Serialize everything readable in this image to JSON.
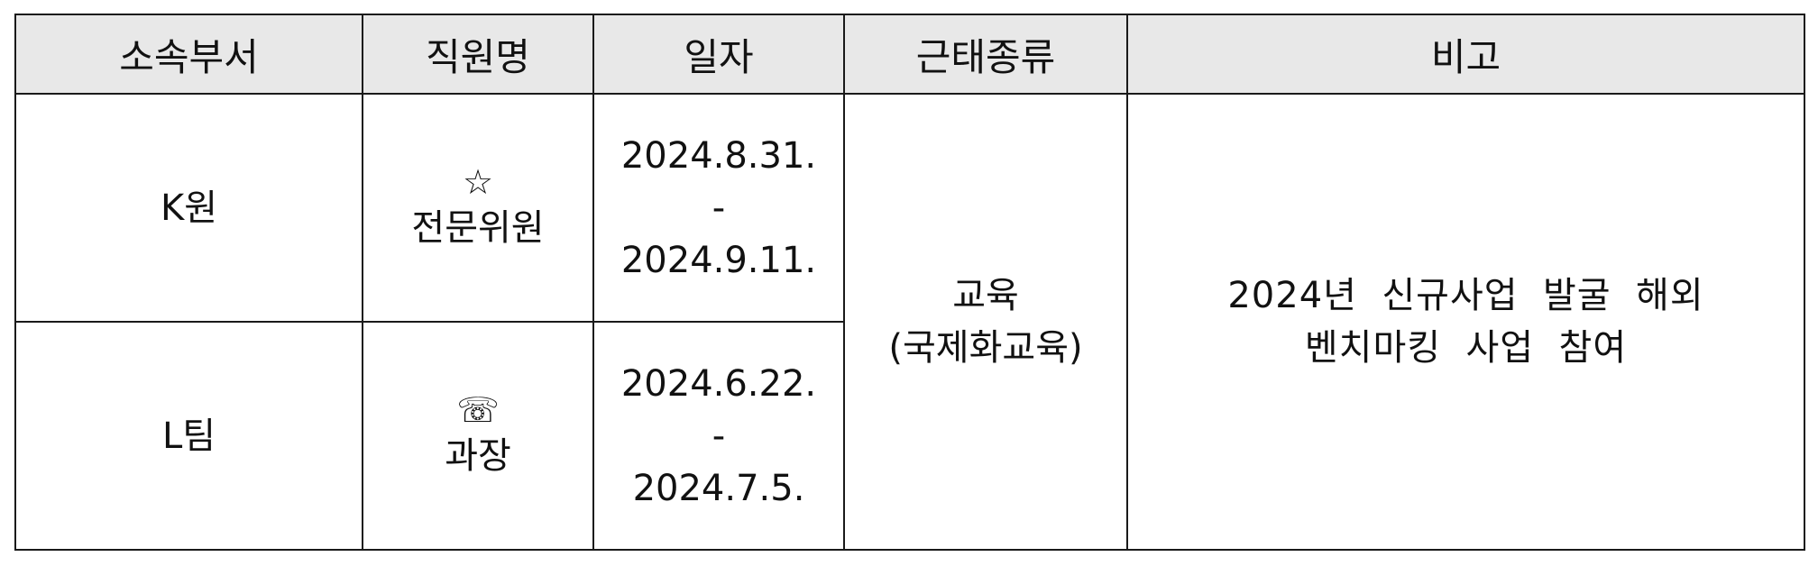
{
  "headers": {
    "dept": "소속부서",
    "name": "직원명",
    "date": "일자",
    "type": "근태종류",
    "note": "비고"
  },
  "rows": [
    {
      "dept": "K원",
      "icon": "☆",
      "icon_name": "star-icon",
      "position": "전문위원",
      "date_start": "2024.8.31.",
      "date_sep": "-",
      "date_end": "2024.9.11."
    },
    {
      "dept": "L팀",
      "icon": "☏",
      "icon_name": "telephone-icon",
      "position": "과장",
      "date_start": "2024.6.22.",
      "date_sep": "-",
      "date_end": "2024.7.5."
    }
  ],
  "shared": {
    "type_line1": "교육",
    "type_line2": "(국제화교육)",
    "note_line1": "2024년  신규사업  발굴  해외",
    "note_line2": "벤치마킹  사업  참여"
  }
}
